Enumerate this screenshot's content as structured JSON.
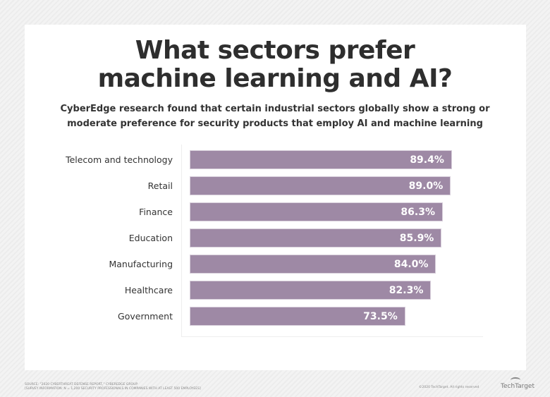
{
  "header": {
    "title_line1": "What sectors prefer",
    "title_line2": "machine learning and AI?",
    "subtitle_line1": "CyberEdge research found that certain industrial sectors globally show a strong or",
    "subtitle_line2": "moderate preference for security products that employ AI and machine learning"
  },
  "chart_data": {
    "type": "bar",
    "orientation": "horizontal",
    "categories": [
      "Telecom and technology",
      "Retail",
      "Finance",
      "Education",
      "Manufacturing",
      "Healthcare",
      "Government"
    ],
    "values": [
      89.4,
      89.0,
      86.3,
      85.9,
      84.0,
      82.3,
      73.5
    ],
    "value_labels": [
      "89.4%",
      "89.0%",
      "86.3%",
      "85.9%",
      "84.0%",
      "82.3%",
      "73.5%"
    ],
    "xlim": [
      0,
      100
    ],
    "bar_color": "#9e89a5",
    "grid": false
  },
  "footer": {
    "source_line1": "Source: \"2020 Cyberthreat Defense Report,\" CyberEdge Group",
    "source_line2": "[Survey information: N = 1,200 security professionals in companies with at least 500 employees]",
    "copyright": "©2020 TechTarget. All rights reserved",
    "brand": "TechTarget"
  }
}
